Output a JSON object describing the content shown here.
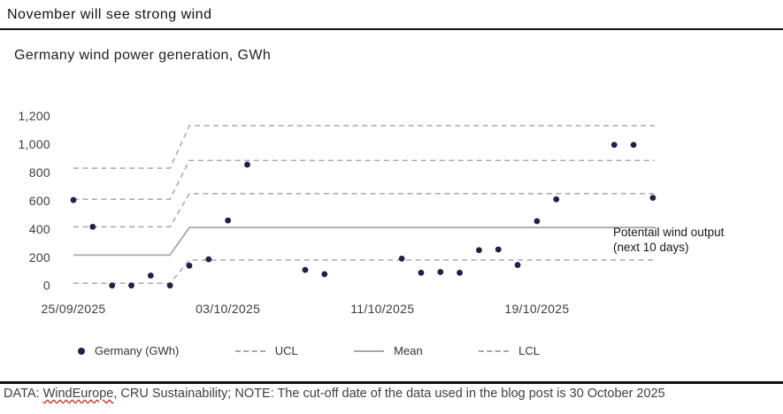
{
  "header": {
    "title": "November will see strong wind",
    "subtitle": "Germany wind power generation, GWh"
  },
  "annotation": {
    "line1": "Potentail wind output",
    "line2": "(next 10 days)"
  },
  "footer": {
    "prefix": "DATA: ",
    "misspelled_word": "WindEurope",
    "rest": ", CRU Sustainability; NOTE: The cut-off date of the data used in the blog post is 30 October 2025"
  },
  "colors": {
    "point": "#231f45",
    "control_lines": "#a8a8a8",
    "spellcheck_squiggle": "#b9443a"
  },
  "chart_data": {
    "type": "scatter",
    "title": "Germany wind power generation, GWh",
    "unit": "GWh",
    "grid": "off",
    "x_axis": {
      "tick_labels": [
        "25/09/2025",
        "03/10/2025",
        "11/10/2025",
        "19/10/2025"
      ],
      "tick_days": [
        0,
        8,
        16,
        24
      ],
      "day0_date": "25/09/2025"
    },
    "y_axis": {
      "ticks": [
        0,
        200,
        400,
        600,
        800,
        1000,
        1200
      ],
      "tick_labels": [
        "0",
        "200",
        "400",
        "600",
        "800",
        "1,000",
        "1,200"
      ],
      "range": [
        0,
        1200
      ]
    },
    "points": {
      "name": "Germany (GWh)",
      "data": [
        {
          "date": "25/09/2025",
          "day": 0,
          "value": 605
        },
        {
          "date": "26/09/2025",
          "day": 1,
          "value": 415
        },
        {
          "date": "27/09/2025",
          "day": 2,
          "value": 0
        },
        {
          "date": "28/09/2025",
          "day": 3,
          "value": 0
        },
        {
          "date": "29/09/2025",
          "day": 4,
          "value": 70
        },
        {
          "date": "30/09/2025",
          "day": 5,
          "value": 0
        },
        {
          "date": "01/10/2025",
          "day": 6,
          "value": 140
        },
        {
          "date": "02/10/2025",
          "day": 7,
          "value": 185
        },
        {
          "date": "03/10/2025",
          "day": 8,
          "value": 460
        },
        {
          "date": "04/10/2025",
          "day": 9,
          "value": 855
        },
        {
          "date": "07/10/2025",
          "day": 12,
          "value": 110
        },
        {
          "date": "08/10/2025",
          "day": 13,
          "value": 80
        },
        {
          "date": "12/10/2025",
          "day": 17,
          "value": 190
        },
        {
          "date": "13/10/2025",
          "day": 18,
          "value": 90
        },
        {
          "date": "14/10/2025",
          "day": 19,
          "value": 95
        },
        {
          "date": "15/10/2025",
          "day": 20,
          "value": 90
        },
        {
          "date": "16/10/2025",
          "day": 21,
          "value": 250
        },
        {
          "date": "17/10/2025",
          "day": 22,
          "value": 255
        },
        {
          "date": "18/10/2025",
          "day": 23,
          "value": 145
        },
        {
          "date": "19/10/2025",
          "day": 24,
          "value": 455
        },
        {
          "date": "20/10/2025",
          "day": 25,
          "value": 610
        },
        {
          "date": "23/10/2025",
          "day": 28,
          "value": 995
        },
        {
          "date": "24/10/2025",
          "day": 29,
          "value": 995
        },
        {
          "date": "25/10/2025",
          "day": 30,
          "value": 620
        }
      ]
    },
    "lines": [
      {
        "name": "UCL",
        "style": "dashed",
        "points": [
          [
            0,
            830
          ],
          [
            5,
            830
          ],
          [
            6,
            1130
          ],
          [
            30.1,
            1130
          ]
        ]
      },
      {
        "name": "UCL",
        "style": "dashed",
        "points": [
          [
            0,
            610
          ],
          [
            5,
            610
          ],
          [
            6,
            885
          ],
          [
            30.1,
            885
          ]
        ]
      },
      {
        "name": "UCL",
        "style": "dashed",
        "points": [
          [
            0,
            415
          ],
          [
            5,
            415
          ],
          [
            6,
            650
          ],
          [
            30.1,
            650
          ]
        ]
      },
      {
        "name": "Mean",
        "style": "solid",
        "points": [
          [
            0,
            215
          ],
          [
            5,
            215
          ],
          [
            6,
            410
          ],
          [
            30.1,
            410
          ]
        ]
      },
      {
        "name": "LCL",
        "style": "dashed",
        "points": [
          [
            0,
            15
          ],
          [
            5,
            15
          ],
          [
            6,
            180
          ],
          [
            30.1,
            180
          ]
        ]
      }
    ],
    "annotation": "Potentail wind output (next 10 days)",
    "legend": [
      {
        "label": "Germany (GWh)",
        "marker": "dot"
      },
      {
        "label": "UCL",
        "marker": "dashed-line"
      },
      {
        "label": "Mean",
        "marker": "solid-line"
      },
      {
        "label": "LCL",
        "marker": "dashed-line"
      }
    ]
  }
}
